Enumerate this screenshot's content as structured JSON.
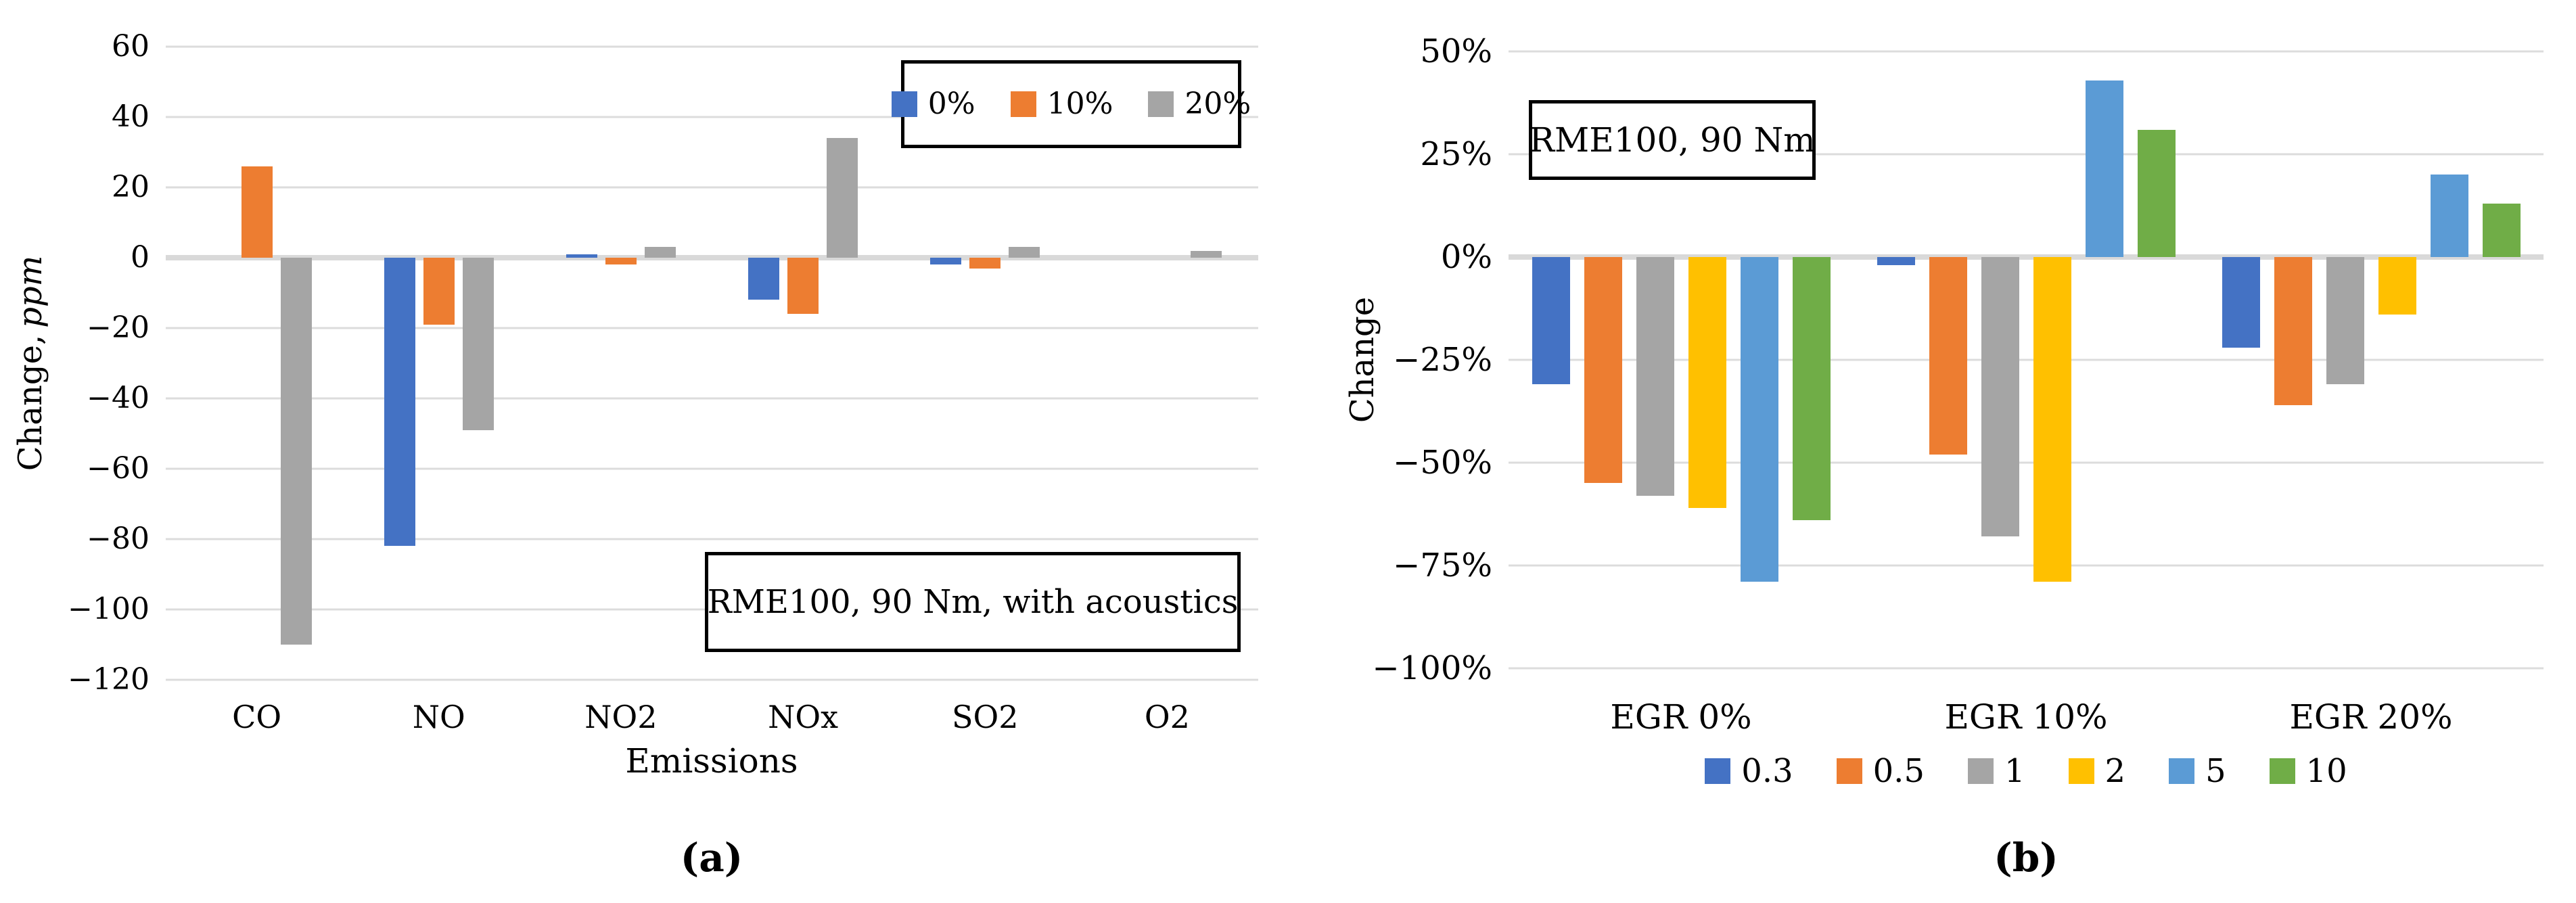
{
  "chart_data": [
    {
      "type": "bar",
      "id": "a",
      "caption": "(a)",
      "annotation": "RME100, 90 Nm, with acoustics",
      "y_axis": {
        "label": "Change,",
        "label_unit": "ppm",
        "min": -120,
        "max": 60,
        "tick_values": [
          60,
          40,
          20,
          0,
          -20,
          -40,
          -60,
          -80,
          -100,
          -120
        ],
        "tick_labels": [
          "60",
          "40",
          "20",
          "0",
          "−20",
          "−40",
          "−60",
          "−80",
          "−100",
          "−120"
        ]
      },
      "x_axis": {
        "label": "Emissions"
      },
      "categories": [
        "CO",
        "NO",
        "NO2",
        "NOx",
        "SO2",
        "O2"
      ],
      "legend_position": "top-right-box",
      "grid": true,
      "series": [
        {
          "name": "0%",
          "color": "#4472C4",
          "values": [
            0,
            -82,
            1,
            -12,
            -2,
            0
          ]
        },
        {
          "name": "10%",
          "color": "#ED7D31",
          "values": [
            26,
            -19,
            -2,
            -16,
            -3,
            0
          ]
        },
        {
          "name": "20%",
          "color": "#A5A5A5",
          "values": [
            -110,
            -49,
            3,
            34,
            3,
            2
          ]
        }
      ]
    },
    {
      "type": "bar",
      "id": "b",
      "caption": "(b)",
      "annotation": "RME100, 90 Nm",
      "y_axis": {
        "label": "Change",
        "min": -100,
        "max": 50,
        "tick_values": [
          50,
          25,
          0,
          -25,
          -50,
          -75,
          -100
        ],
        "tick_labels": [
          "50%",
          "25%",
          "0%",
          "−25%",
          "−50%",
          "−75%",
          "−100%"
        ]
      },
      "x_axis": {
        "label": ""
      },
      "categories": [
        "EGR 0%",
        "EGR 10%",
        "EGR 20%"
      ],
      "legend_position": "bottom-row",
      "grid": true,
      "series": [
        {
          "name": "0.3",
          "color": "#4472C4",
          "values": [
            -31,
            -2,
            -22
          ]
        },
        {
          "name": "0.5",
          "color": "#ED7D31",
          "values": [
            -55,
            -48,
            -36
          ]
        },
        {
          "name": "1",
          "color": "#A5A5A5",
          "values": [
            -58,
            -68,
            -31
          ]
        },
        {
          "name": "2",
          "color": "#FFC000",
          "values": [
            -61,
            -79,
            -14
          ]
        },
        {
          "name": "5",
          "color": "#5B9BD5",
          "values": [
            -79,
            43,
            20
          ]
        },
        {
          "name": "10",
          "color": "#70AD47",
          "values": [
            -64,
            31,
            13
          ]
        }
      ]
    }
  ],
  "colors": {
    "gridline": "#DCDCDC",
    "zero_axis": "#D9D9D9",
    "box_border": "#000000"
  }
}
